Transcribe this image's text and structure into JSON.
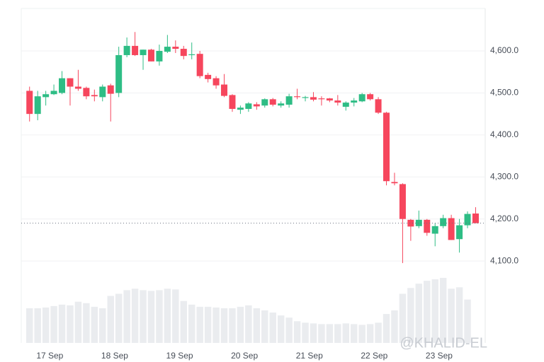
{
  "chart_data": {
    "type": "candlestick",
    "categories": [
      null,
      null,
      null,
      "17 Sep",
      null,
      null,
      null,
      null,
      null,
      null,
      null,
      "18 Sep",
      null,
      null,
      null,
      null,
      null,
      null,
      null,
      "19 Sep",
      null,
      null,
      null,
      null,
      null,
      null,
      null,
      "20 Sep",
      null,
      null,
      null,
      null,
      null,
      null,
      null,
      "21 Sep",
      null,
      null,
      null,
      null,
      null,
      null,
      null,
      "22 Sep",
      null,
      null,
      null,
      null,
      null,
      null,
      null,
      "23 Sep",
      null,
      null,
      null,
      null
    ],
    "open": [
      4505,
      4450,
      4490,
      4497,
      4500,
      4535,
      4515,
      4512,
      4495,
      4490,
      4518,
      4500,
      4590,
      4612,
      4590,
      4603,
      4575,
      4598,
      4610,
      4605,
      4590,
      4593,
      4543,
      4535,
      4520,
      4495,
      4460,
      4462,
      4473,
      4470,
      4485,
      4470,
      4472,
      4492,
      4488,
      4490,
      4487,
      4487,
      4482,
      4467,
      4477,
      4480,
      4497,
      4485,
      4453,
      4288,
      4283,
      4198,
      4183,
      4198,
      4165,
      4183,
      4202,
      4152,
      4185,
      4213
    ],
    "high": [
      4515,
      4505,
      4505,
      4520,
      4552,
      4535,
      4555,
      4515,
      4508,
      4520,
      4522,
      4610,
      4632,
      4645,
      4603,
      4605,
      4615,
      4638,
      4625,
      4612,
      4620,
      4600,
      4548,
      4540,
      4545,
      4497,
      4470,
      4478,
      4478,
      4487,
      4488,
      4480,
      4498,
      4510,
      4493,
      4502,
      4492,
      4488,
      4495,
      4480,
      4488,
      4500,
      4500,
      4490,
      4455,
      4310,
      4285,
      4200,
      4220,
      4200,
      4190,
      4210,
      4210,
      4200,
      4218,
      4228
    ],
    "low": [
      4432,
      4435,
      4470,
      4495,
      4497,
      4470,
      4505,
      4485,
      4480,
      4480,
      4432,
      4490,
      4585,
      4588,
      4555,
      4575,
      4565,
      4595,
      4595,
      4580,
      4580,
      4535,
      4525,
      4510,
      4490,
      4455,
      4450,
      4455,
      4460,
      4465,
      4468,
      4465,
      4465,
      4485,
      4480,
      4480,
      4470,
      4478,
      4470,
      4458,
      4468,
      4478,
      4482,
      4450,
      4280,
      4280,
      4095,
      4148,
      4178,
      4160,
      4135,
      4178,
      4150,
      4120,
      4178,
      4190
    ],
    "close": [
      4450,
      4492,
      4497,
      4505,
      4535,
      4515,
      4510,
      4492,
      4492,
      4515,
      4498,
      4590,
      4612,
      4590,
      4603,
      4575,
      4600,
      4610,
      4605,
      4588,
      4592,
      4540,
      4533,
      4518,
      4493,
      4462,
      4465,
      4475,
      4468,
      4485,
      4472,
      4475,
      4492,
      4490,
      4490,
      4484,
      4485,
      4482,
      4477,
      4477,
      4482,
      4497,
      4485,
      4453,
      4290,
      4285,
      4200,
      4182,
      4198,
      4167,
      4183,
      4202,
      4150,
      4185,
      4212,
      4190
    ],
    "volumes": [
      48,
      48,
      49,
      51,
      53,
      52,
      57,
      55,
      50,
      48,
      65,
      68,
      73,
      75,
      73,
      72,
      73,
      75,
      74,
      58,
      53,
      50,
      50,
      49,
      48,
      48,
      50,
      52,
      48,
      45,
      42,
      38,
      35,
      30,
      28,
      27,
      26,
      26,
      26,
      27,
      26,
      25,
      26,
      28,
      40,
      45,
      68,
      76,
      82,
      86,
      88,
      90,
      75,
      77,
      60,
      0
    ],
    "up_color": "#2ebd85",
    "down_color": "#f6465d",
    "volume_color": "#eaecef",
    "ylim": [
      3905,
      4701
    ],
    "yticks": [
      {
        "value": 4100,
        "label": "4,100.0"
      },
      {
        "value": 4200,
        "label": "4,200.0"
      },
      {
        "value": 4300,
        "label": "4,300.0"
      },
      {
        "value": 4400,
        "label": "4,400.0"
      },
      {
        "value": 4500,
        "label": "4,500.0"
      },
      {
        "value": 4600,
        "label": "4,600.0"
      }
    ],
    "grid": true,
    "watermark": "@KHALID-EL"
  }
}
